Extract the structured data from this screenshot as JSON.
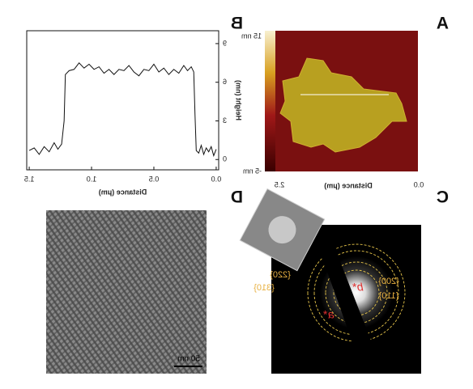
{
  "panel_labels": [
    "A",
    "B",
    "C",
    "D"
  ],
  "afm": {
    "colorbar_max": "15 nm",
    "colorbar_min": "-5 nm",
    "x_label": "Distance (μm)",
    "x_tick_labels": [
      "0.0",
      "2.5"
    ]
  },
  "tem": {
    "scale_bar": "50 nm"
  },
  "saed": {
    "ring_labels": [
      "{110}",
      "{200}",
      "{220}",
      "{310}"
    ],
    "reciprocal_axes": [
      "a*",
      "b*"
    ]
  },
  "chart_data": {
    "type": "line",
    "x_label": "Distance (μm)",
    "y_label": "Height (nm)",
    "x": [
      0.0,
      0.02,
      0.04,
      0.06,
      0.08,
      0.1,
      0.12,
      0.14,
      0.16,
      0.17,
      0.18,
      0.2,
      0.23,
      0.26,
      0.3,
      0.34,
      0.38,
      0.42,
      0.46,
      0.5,
      0.54,
      0.58,
      0.62,
      0.66,
      0.7,
      0.74,
      0.78,
      0.82,
      0.86,
      0.9,
      0.94,
      0.98,
      1.02,
      1.06,
      1.1,
      1.14,
      1.18,
      1.21,
      1.22,
      1.24,
      1.27,
      1.3,
      1.34,
      1.38,
      1.42,
      1.46,
      1.5
    ],
    "series": [
      {
        "color": "#111111",
        "values": [
          0.8,
          0.3,
          1.0,
          0.6,
          0.9,
          0.4,
          1.1,
          0.5,
          0.7,
          3.5,
          6.8,
          7.2,
          6.9,
          7.3,
          6.7,
          7.0,
          6.6,
          7.1,
          6.8,
          7.4,
          6.9,
          7.0,
          6.5,
          6.8,
          7.3,
          6.9,
          7.0,
          6.6,
          7.0,
          6.7,
          7.2,
          7.0,
          7.4,
          7.1,
          7.5,
          7.0,
          6.9,
          6.6,
          3.0,
          1.2,
          0.8,
          1.3,
          0.6,
          1.0,
          0.4,
          0.9,
          0.7
        ]
      }
    ],
    "xlim": [
      -0.02,
      1.52
    ],
    "ylim": [
      -0.8,
      10
    ],
    "xticks": [
      {
        "value": 0,
        "label": "0.0"
      },
      {
        "value": 0.5,
        "label": "0.5"
      },
      {
        "value": 1,
        "label": "1.0"
      },
      {
        "value": 1.5,
        "label": "1.5"
      }
    ],
    "yticks": [
      0,
      3,
      6,
      9
    ],
    "grid": false
  }
}
